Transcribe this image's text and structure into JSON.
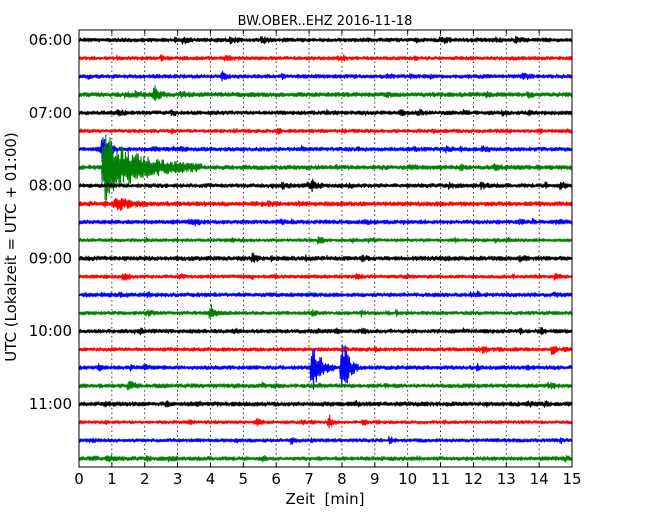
{
  "chart_data": {
    "type": "line",
    "chart_kind": "seismogram-helicorder",
    "title": "BW.OBER..EHZ 2016-11-18",
    "xlabel": "Zeit  [min]",
    "ylabel": "UTC (Lokalzeit = UTC + 01:00)",
    "xlim": [
      0,
      15
    ],
    "x_ticks": [
      "0",
      "1",
      "2",
      "3",
      "4",
      "5",
      "6",
      "7",
      "8",
      "9",
      "10",
      "11",
      "12",
      "13",
      "14",
      "15"
    ],
    "y_ticks": [
      "06:00",
      "07:00",
      "08:00",
      "09:00",
      "10:00",
      "11:00"
    ],
    "grid": "vertical-dotted",
    "colors": [
      "#000000",
      "#ff0000",
      "#0000ff",
      "#008000"
    ],
    "traces": [
      {
        "start": "06:00",
        "color": "#000000",
        "noise": 1.0,
        "events": []
      },
      {
        "start": "06:15",
        "color": "#ff0000",
        "noise": 0.9,
        "events": []
      },
      {
        "start": "06:30",
        "color": "#0000ff",
        "noise": 1.0,
        "events": []
      },
      {
        "start": "06:45",
        "color": "#008000",
        "noise": 1.1,
        "events": [
          {
            "t": 2.3,
            "amp": 2.0,
            "dur": 0.4
          }
        ]
      },
      {
        "start": "07:00",
        "color": "#000000",
        "noise": 1.0,
        "events": []
      },
      {
        "start": "07:15",
        "color": "#ff0000",
        "noise": 0.9,
        "events": []
      },
      {
        "start": "07:30",
        "color": "#0000ff",
        "noise": 1.0,
        "events": [
          {
            "t": 0.7,
            "amp": 3.5,
            "dur": 0.5
          }
        ]
      },
      {
        "start": "07:45",
        "color": "#008000",
        "noise": 1.1,
        "events": [
          {
            "t": 0.75,
            "amp": 8.0,
            "dur": 3.0
          }
        ]
      },
      {
        "start": "08:00",
        "color": "#000000",
        "noise": 1.0,
        "events": [
          {
            "t": 7.1,
            "amp": 1.8,
            "dur": 0.2
          }
        ]
      },
      {
        "start": "08:15",
        "color": "#ff0000",
        "noise": 1.1,
        "events": [
          {
            "t": 1.1,
            "amp": 2.0,
            "dur": 1.0
          }
        ]
      },
      {
        "start": "08:30",
        "color": "#0000ff",
        "noise": 1.0,
        "events": []
      },
      {
        "start": "08:45",
        "color": "#008000",
        "noise": 0.8,
        "events": []
      },
      {
        "start": "09:00",
        "color": "#000000",
        "noise": 1.1,
        "events": [
          {
            "t": 5.3,
            "amp": 1.8,
            "dur": 0.2
          }
        ]
      },
      {
        "start": "09:15",
        "color": "#ff0000",
        "noise": 0.9,
        "events": []
      },
      {
        "start": "09:30",
        "color": "#0000ff",
        "noise": 1.0,
        "events": []
      },
      {
        "start": "09:45",
        "color": "#008000",
        "noise": 0.9,
        "events": [
          {
            "t": 4.0,
            "amp": 2.2,
            "dur": 0.3
          }
        ]
      },
      {
        "start": "10:00",
        "color": "#000000",
        "noise": 1.0,
        "events": []
      },
      {
        "start": "10:15",
        "color": "#ff0000",
        "noise": 0.9,
        "events": [
          {
            "t": 14.4,
            "amp": 1.8,
            "dur": 0.2
          }
        ]
      },
      {
        "start": "10:30",
        "color": "#0000ff",
        "noise": 1.0,
        "events": [
          {
            "t": 7.1,
            "amp": 6.0,
            "dur": 0.7
          },
          {
            "t": 8.0,
            "amp": 9.0,
            "dur": 0.5
          }
        ]
      },
      {
        "start": "10:45",
        "color": "#008000",
        "noise": 1.0,
        "events": []
      },
      {
        "start": "11:00",
        "color": "#000000",
        "noise": 1.1,
        "events": []
      },
      {
        "start": "11:15",
        "color": "#ff0000",
        "noise": 0.8,
        "events": [
          {
            "t": 7.6,
            "amp": 1.8,
            "dur": 0.3
          }
        ]
      },
      {
        "start": "11:30",
        "color": "#0000ff",
        "noise": 0.9,
        "events": []
      },
      {
        "start": "11:45",
        "color": "#008000",
        "noise": 1.0,
        "events": []
      }
    ]
  }
}
